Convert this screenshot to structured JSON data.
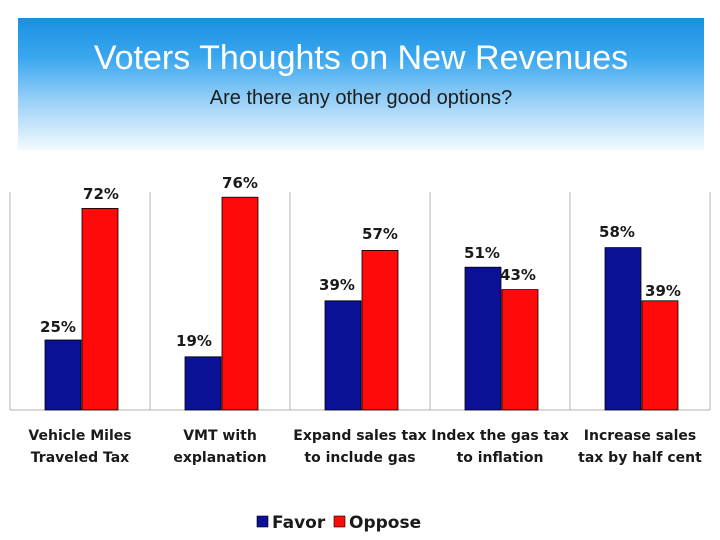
{
  "header": {
    "title": "Voters Thoughts on New Revenues",
    "subtitle": "Are there any other good options?"
  },
  "chart_data": {
    "type": "bar",
    "title": "Voters Thoughts on New Revenues",
    "subtitle": "Are there any other good options?",
    "categories": [
      [
        "Vehicle Miles",
        "Traveled Tax"
      ],
      [
        "VMT with",
        "explanation"
      ],
      [
        "Expand sales tax",
        "to include gas"
      ],
      [
        "Index the gas tax",
        "to inflation"
      ],
      [
        "Increase sales",
        "tax by half cent"
      ]
    ],
    "series": [
      {
        "name": "Favor",
        "values": [
          25,
          19,
          39,
          51,
          58
        ],
        "labels": [
          "25%",
          "19%",
          "39%",
          "51%",
          "58%"
        ],
        "color": "#0a1196"
      },
      {
        "name": "Oppose",
        "values": [
          72,
          76,
          57,
          43,
          39
        ],
        "labels": [
          "72%",
          "76%",
          "57%",
          "43%",
          "39%"
        ],
        "color": "#ff0a0a"
      }
    ],
    "ylim": [
      0,
      80
    ],
    "grid": false,
    "legend": "bottom-center"
  }
}
